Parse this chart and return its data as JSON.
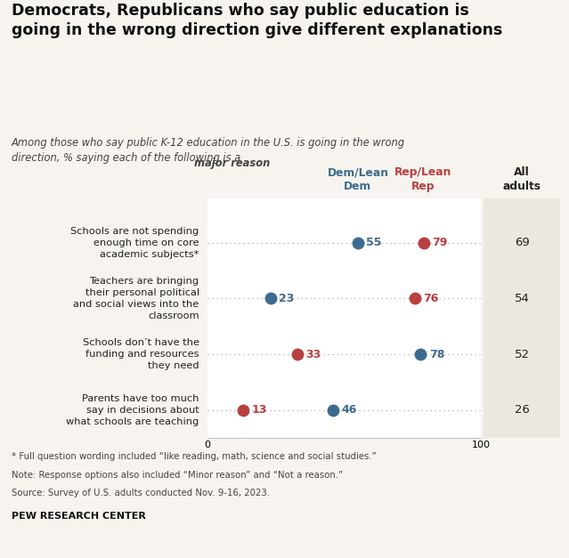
{
  "title": "Democrats, Republicans who say public education is\ngoing in the wrong direction give different explanations",
  "subtitle_italic": "Among those who say public K-12 education in the U.S. is going in the wrong\ndirection, % saying each of the following is a ",
  "subtitle_bold": "major reason",
  "categories": [
    "Schools are not spending\nenough time on core\nacademic subjects*",
    "Teachers are bringing\ntheir personal political\nand social views into the\nclassroom",
    "Schools don’t have the\nfunding and resources\nthey need",
    "Parents have too much\nsay in decisions about\nwhat schools are teaching"
  ],
  "dem_values": [
    55,
    23,
    78,
    46
  ],
  "rep_values": [
    79,
    76,
    33,
    13
  ],
  "all_adults": [
    69,
    54,
    52,
    26
  ],
  "dem_color": "#3d6b8e",
  "rep_color": "#b84040",
  "dot_size": 100,
  "col_header_dem": "Dem/Lean\nDem",
  "col_header_rep": "Rep/Lean\nRep",
  "col_header_all": "All\nadults",
  "x_min": 0,
  "x_max": 100,
  "footnotes": [
    "* Full question wording included “like reading, math, science and social studies.”",
    "Note: Response options also included “Minor reason” and “Not a reason.”",
    "Source: Survey of U.S. adults conducted Nov. 9-16, 2023."
  ],
  "source_label": "PEW RESEARCH CENTER",
  "bg_color": "#f7f4ef",
  "plot_bg": "#ffffff",
  "right_panel_bg": "#ede8df"
}
